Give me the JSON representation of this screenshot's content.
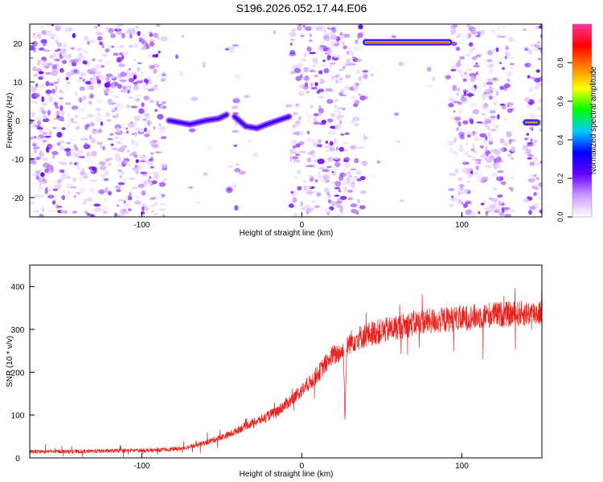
{
  "title": "S196.2026.052.17.44.E06",
  "chart_data": [
    {
      "type": "heatmap",
      "xlabel": "Height of straight line (km)",
      "ylabel": "Frequency (Hz)",
      "xlim": [
        -170,
        150
      ],
      "ylim": [
        -25,
        25
      ],
      "xticks": [
        -100,
        0,
        100
      ],
      "xtick_labels": [
        "-100",
        "0",
        "100"
      ],
      "yticks": [
        -20,
        -10,
        0,
        10,
        20
      ],
      "ytick_labels": [
        "-20",
        "-10",
        "0",
        "10",
        "20"
      ],
      "empty_bands": [
        [
          -85,
          -42
        ],
        [
          -40,
          -7
        ],
        [
          40,
          93
        ],
        [
          132,
          140
        ]
      ],
      "signal_tracks": [
        {
          "name": "track-a",
          "points": [
            [
              -83,
              0
            ],
            [
              -70,
              -1
            ],
            [
              -60,
              0
            ],
            [
              -52,
              0.5
            ],
            [
              -47,
              1.5
            ]
          ],
          "peak": 0.35
        },
        {
          "name": "track-b",
          "points": [
            [
              -42,
              1
            ],
            [
              -35,
              -1.5
            ],
            [
              -28,
              -2
            ],
            [
              -22,
              -1
            ],
            [
              -15,
              0
            ],
            [
              -8,
              1
            ]
          ],
          "peak": 0.35
        },
        {
          "name": "track-c",
          "points": [
            [
              40,
              20.3
            ],
            [
              55,
              20.3
            ],
            [
              70,
              20.3
            ],
            [
              85,
              20.3
            ],
            [
              92,
              20.3
            ]
          ],
          "peak": 0.9
        },
        {
          "name": "track-d",
          "points": [
            [
              140,
              -0.5
            ],
            [
              147,
              -0.5
            ]
          ],
          "peak": 0.75
        },
        {
          "name": "track-e",
          "points": [
            [
              -45.5,
              -18
            ],
            [
              -45,
              -18
            ]
          ],
          "peak": 0.2
        }
      ],
      "colorbar": {
        "label": "Normalized spectral amplitude",
        "range": [
          0,
          1
        ],
        "ticks": [
          0,
          0.2,
          0.4,
          0.6,
          0.8
        ],
        "tick_labels": [
          "0.0",
          "0.2",
          "0.4",
          "0.6",
          "0.8"
        ],
        "colors": [
          "#ffffff",
          "#cc99ff",
          "#6600ff",
          "#0000ff",
          "#00ccff",
          "#00ff00",
          "#ffff00",
          "#ff8000",
          "#ff0000",
          "#ff3399"
        ]
      }
    },
    {
      "type": "line",
      "xlabel": "Height of straight line (km)",
      "ylabel": "SNR (10 * v/v)",
      "xlim": [
        -170,
        150
      ],
      "ylim": [
        0,
        450
      ],
      "xticks": [
        -100,
        0,
        100
      ],
      "xtick_labels": [
        "-100",
        "0",
        "100"
      ],
      "yticks": [
        0,
        100,
        200,
        300,
        400
      ],
      "ytick_labels": [
        "0",
        "100",
        "200",
        "300",
        "400"
      ],
      "series": [
        {
          "name": "SNR",
          "color": "#e8221e",
          "x": [
            -170,
            -140,
            -110,
            -90,
            -75,
            -65,
            -55,
            -45,
            -35,
            -25,
            -15,
            -5,
            5,
            12,
            18,
            23,
            26,
            27,
            28,
            30,
            35,
            45,
            55,
            65,
            75,
            85,
            95,
            100,
            110,
            120,
            130,
            140,
            150
          ],
          "y": [
            15,
            15,
            17,
            18,
            22,
            30,
            42,
            55,
            75,
            90,
            110,
            140,
            175,
            205,
            235,
            245,
            250,
            90,
            255,
            270,
            280,
            292,
            300,
            310,
            318,
            320,
            325,
            325,
            330,
            335,
            335,
            337,
            340
          ]
        }
      ]
    }
  ]
}
